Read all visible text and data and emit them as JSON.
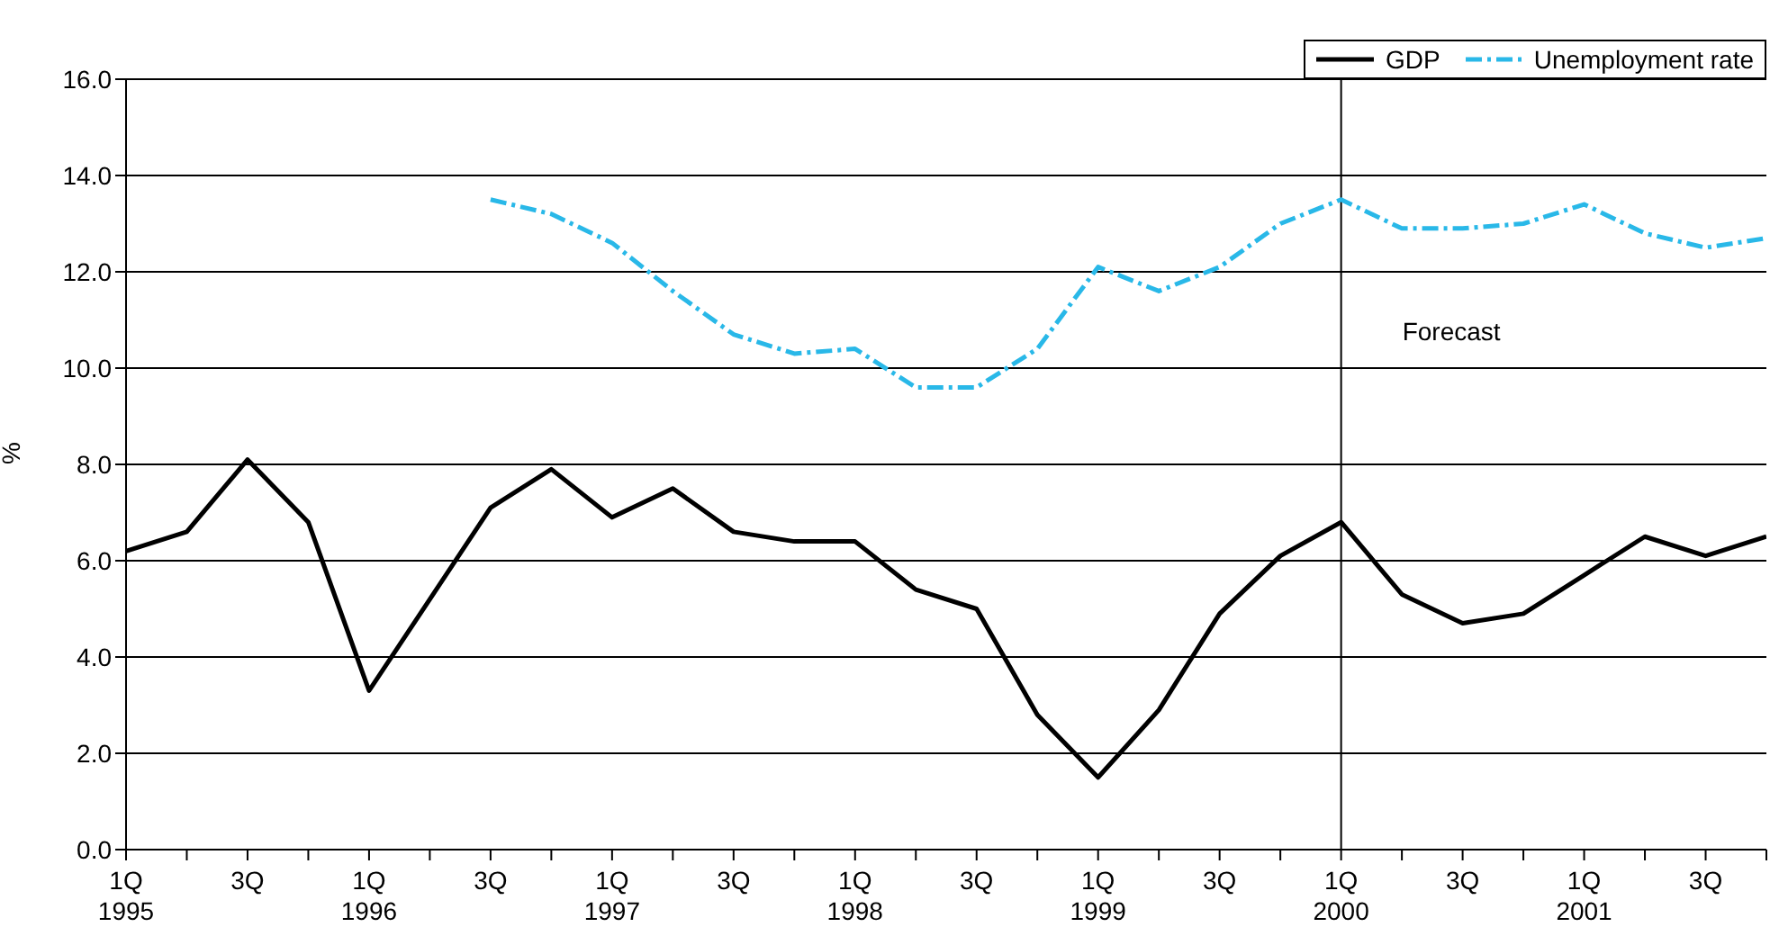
{
  "chart_data": {
    "type": "line",
    "categories": [
      "1Q\n1995",
      null,
      "3Q",
      null,
      "1Q\n1996",
      null,
      "3Q",
      null,
      "1Q\n1997",
      null,
      "3Q",
      null,
      "1Q\n1998",
      null,
      "3Q",
      null,
      "1Q\n1999",
      null,
      "3Q",
      null,
      "1Q\n2000",
      null,
      "3Q",
      null,
      "1Q\n2001",
      null,
      "3Q",
      null
    ],
    "series": [
      {
        "name": "GDP",
        "color": "#000000",
        "line_style": "solid",
        "values": [
          6.2,
          6.6,
          8.1,
          6.8,
          3.3,
          5.2,
          7.1,
          7.9,
          6.9,
          7.5,
          6.6,
          6.4,
          6.4,
          5.4,
          5.0,
          2.8,
          1.5,
          2.9,
          4.9,
          6.1,
          6.8,
          5.3,
          4.7,
          4.9,
          5.7,
          6.5,
          6.1,
          6.5
        ]
      },
      {
        "name": "Unemployment rate",
        "color": "#29b8e8",
        "line_style": "dashdot",
        "values": [
          null,
          null,
          null,
          null,
          null,
          null,
          13.5,
          13.2,
          12.6,
          11.6,
          10.7,
          10.3,
          10.4,
          9.6,
          9.6,
          10.4,
          12.1,
          11.6,
          12.1,
          13.0,
          13.5,
          12.9,
          12.9,
          13.0,
          13.4,
          12.8,
          12.5,
          12.7
        ]
      }
    ],
    "ylabel": "%",
    "ylim": [
      0,
      16
    ],
    "yticks": [
      {
        "value": 0,
        "label": "0.0"
      },
      {
        "value": 2,
        "label": "2.0"
      },
      {
        "value": 4,
        "label": "4.0"
      },
      {
        "value": 6,
        "label": "6.0"
      },
      {
        "value": 8,
        "label": "8.0"
      },
      {
        "value": 10,
        "label": "10.0"
      },
      {
        "value": 12,
        "label": "12.0"
      },
      {
        "value": 14,
        "label": "14.0"
      },
      {
        "value": 16,
        "label": "16.0"
      }
    ],
    "grid": "y",
    "legend": "top right",
    "marker": "none",
    "ref_lines": [
      {
        "axis": "x",
        "value": "1Q\n2000",
        "label": "Forecast",
        "color": "#000000"
      }
    ]
  }
}
